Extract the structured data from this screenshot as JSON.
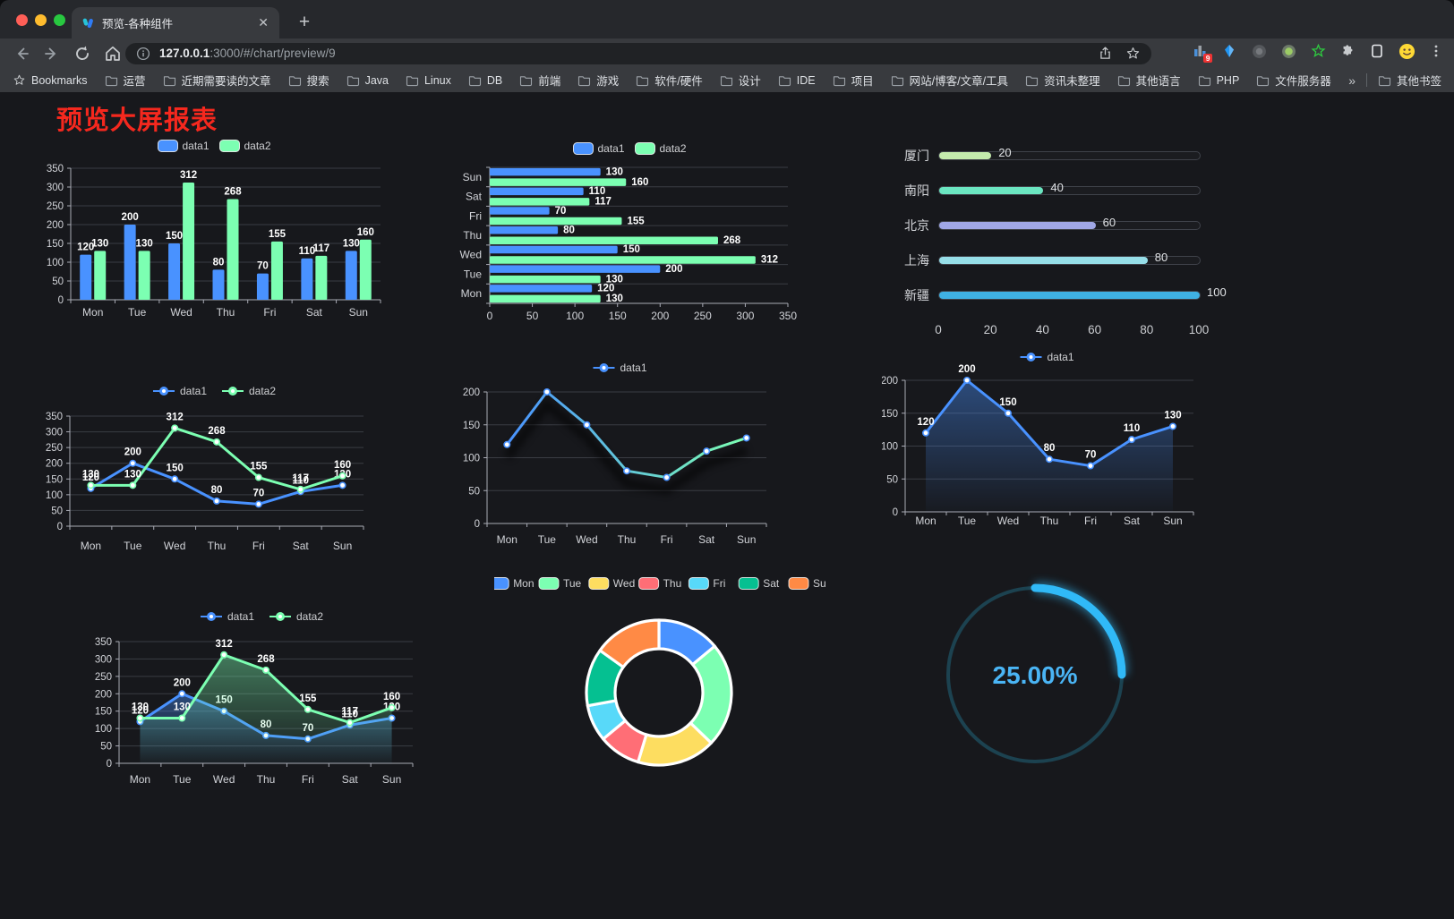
{
  "browser": {
    "tab_title": "预览-各种组件",
    "url_host": "127.0.0.1",
    "url_rest": ":3000/#/chart/preview/9",
    "bookmarks_label": "Bookmarks",
    "bookmarks": [
      "运营",
      "近期需要读的文章",
      "搜索",
      "Java",
      "Linux",
      "DB",
      "前端",
      "游戏",
      "软件/硬件",
      "设计",
      "IDE",
      "项目",
      "网站/博客/文章/工具",
      "资讯未整理",
      "其他语言",
      "PHP",
      "文件服务器"
    ],
    "overflow": "»",
    "other_bookmarks": "其他书签",
    "extension_badge": "9"
  },
  "page": {
    "title": "预览大屏报表"
  },
  "chart_data": [
    {
      "id": "bar-grouped",
      "type": "bar",
      "categories": [
        "Mon",
        "Tue",
        "Wed",
        "Thu",
        "Fri",
        "Sat",
        "Sun"
      ],
      "series": [
        {
          "name": "data1",
          "color": "#4992ff",
          "values": [
            120,
            200,
            150,
            80,
            70,
            110,
            130
          ]
        },
        {
          "name": "data2",
          "color": "#7cffb2",
          "values": [
            130,
            130,
            312,
            268,
            155,
            117,
            160
          ]
        }
      ],
      "ylim": [
        0,
        350
      ],
      "ystep": 50,
      "legend_position": "top",
      "grid": true
    },
    {
      "id": "bar-horizontal",
      "type": "bar-horizontal",
      "categories": [
        "Mon",
        "Tue",
        "Wed",
        "Thu",
        "Fri",
        "Sat",
        "Sun"
      ],
      "series": [
        {
          "name": "data1",
          "color": "#4992ff",
          "values": [
            120,
            200,
            150,
            80,
            70,
            110,
            130
          ]
        },
        {
          "name": "data2",
          "color": "#7cffb2",
          "values": [
            130,
            130,
            312,
            268,
            155,
            117,
            160
          ]
        }
      ],
      "xlim": [
        0,
        350
      ],
      "xstep": 50,
      "legend_position": "top",
      "grid": true
    },
    {
      "id": "progress",
      "type": "progress",
      "max": 100,
      "items": [
        {
          "label": "厦门",
          "value": 20,
          "color": "#c4ebad"
        },
        {
          "label": "南阳",
          "value": 40,
          "color": "#6be6c1"
        },
        {
          "label": "北京",
          "value": 60,
          "color": "#a0a7e6"
        },
        {
          "label": "上海",
          "value": 80,
          "color": "#96dee8"
        },
        {
          "label": "新疆",
          "value": 100,
          "color": "#3fb1e3"
        }
      ],
      "xticks": [
        0,
        20,
        40,
        60,
        80,
        100
      ]
    },
    {
      "id": "line-dual",
      "type": "line",
      "categories": [
        "Mon",
        "Tue",
        "Wed",
        "Thu",
        "Fri",
        "Sat",
        "Sun"
      ],
      "series": [
        {
          "name": "data1",
          "color": "#4992ff",
          "values": [
            120,
            200,
            150,
            80,
            70,
            110,
            130
          ]
        },
        {
          "name": "data2",
          "color": "#7cffb2",
          "values": [
            130,
            130,
            312,
            268,
            155,
            117,
            160
          ]
        }
      ],
      "ylim": [
        0,
        350
      ],
      "ystep": 50,
      "show_labels": true,
      "legend_position": "top",
      "grid": true
    },
    {
      "id": "line-gradient",
      "type": "line",
      "categories": [
        "Mon",
        "Tue",
        "Wed",
        "Thu",
        "Fri",
        "Sat",
        "Sun"
      ],
      "series": [
        {
          "name": "data1",
          "color": "#4992ff",
          "gradient": [
            "#4992ff",
            "#7cffb2"
          ],
          "shadow": true,
          "values": [
            120,
            200,
            150,
            80,
            70,
            110,
            130
          ]
        }
      ],
      "ylim": [
        0,
        200
      ],
      "ystep": 50,
      "show_labels": false,
      "legend_position": "top",
      "grid": true
    },
    {
      "id": "line-area",
      "type": "line",
      "categories": [
        "Mon",
        "Tue",
        "Wed",
        "Thu",
        "Fri",
        "Sat",
        "Sun"
      ],
      "series": [
        {
          "name": "data1",
          "color": "#4992ff",
          "area": true,
          "values": [
            120,
            200,
            150,
            80,
            70,
            110,
            130
          ]
        }
      ],
      "ylim": [
        0,
        200
      ],
      "ystep": 50,
      "show_labels": true,
      "legend_position": "top",
      "grid": true
    },
    {
      "id": "line-area-dual",
      "type": "line",
      "categories": [
        "Mon",
        "Tue",
        "Wed",
        "Thu",
        "Fri",
        "Sat",
        "Sun"
      ],
      "series": [
        {
          "name": "data1",
          "color": "#4992ff",
          "area": true,
          "values": [
            120,
            200,
            150,
            80,
            70,
            110,
            130
          ]
        },
        {
          "name": "data2",
          "color": "#7cffb2",
          "area": true,
          "values": [
            130,
            130,
            312,
            268,
            155,
            117,
            160
          ]
        }
      ],
      "ylim": [
        0,
        350
      ],
      "ystep": 50,
      "show_labels": true,
      "legend_position": "top",
      "grid": true
    },
    {
      "id": "donut",
      "type": "pie",
      "labels": [
        "Mon",
        "Tue",
        "Wed",
        "Thu",
        "Fri",
        "Sat",
        "Sun"
      ],
      "values": [
        120,
        200,
        150,
        80,
        70,
        110,
        130
      ],
      "colors": [
        "#4992ff",
        "#7cffb2",
        "#fddd60",
        "#ff6e76",
        "#58d9f9",
        "#05c091",
        "#ff8a45"
      ],
      "legend_position": "top",
      "border_color": "#ffffff"
    },
    {
      "id": "gauge",
      "type": "gauge",
      "value": 25,
      "display": "25.00%",
      "color": "#30b9f7",
      "track_color": "#1c4250",
      "text_color": "#4ab5f5"
    }
  ]
}
